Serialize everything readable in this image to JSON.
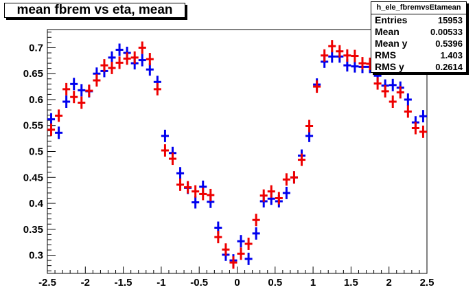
{
  "title": "mean fbrem vs eta, mean",
  "stats": {
    "name": "h_ele_fbremvsEtamean",
    "rows": [
      {
        "label": "Entries",
        "value": "15953"
      },
      {
        "label": "Mean",
        "value": "0.00533"
      },
      {
        "label": "Mean y",
        "value": "0.5396"
      },
      {
        "label": "RMS",
        "value": "1.403"
      },
      {
        "label": "RMS y",
        "value": "0.2614"
      }
    ]
  },
  "chart_data": {
    "type": "scatter",
    "title": "mean fbrem vs eta, mean",
    "xlabel": "",
    "ylabel": "",
    "xlim": [
      -2.5,
      2.5
    ],
    "ylim": [
      0.265,
      0.735
    ],
    "x_ticks": [
      "-2.5",
      "-2",
      "-1.5",
      "-1",
      "-0.5",
      "0",
      "0.5",
      "1",
      "1.5",
      "2",
      "2.5"
    ],
    "y_ticks": [
      "0.3",
      "0.35",
      "0.4",
      "0.45",
      "0.5",
      "0.55",
      "0.6",
      "0.65",
      "0.7"
    ],
    "grid": false,
    "series": [
      {
        "color": "#0000ee",
        "points": [
          [
            -2.45,
            0.562
          ],
          [
            -2.35,
            0.536
          ],
          [
            -2.25,
            0.596
          ],
          [
            -2.15,
            0.63
          ],
          [
            -2.05,
            0.618
          ],
          [
            -1.95,
            0.616
          ],
          [
            -1.85,
            0.65
          ],
          [
            -1.75,
            0.655
          ],
          [
            -1.65,
            0.681
          ],
          [
            -1.55,
            0.696
          ],
          [
            -1.45,
            0.69
          ],
          [
            -1.35,
            0.67
          ],
          [
            -1.25,
            0.676
          ],
          [
            -1.15,
            0.658
          ],
          [
            -1.05,
            0.634
          ],
          [
            -0.95,
            0.53
          ],
          [
            -0.85,
            0.497
          ],
          [
            -0.75,
            0.458
          ],
          [
            -0.65,
            0.43
          ],
          [
            -0.55,
            0.402
          ],
          [
            -0.45,
            0.432
          ],
          [
            -0.35,
            0.403
          ],
          [
            -0.25,
            0.353
          ],
          [
            -0.15,
            0.301
          ],
          [
            -0.05,
            0.29
          ],
          [
            0.05,
            0.327
          ],
          [
            0.15,
            0.293
          ],
          [
            0.25,
            0.342
          ],
          [
            0.35,
            0.404
          ],
          [
            0.45,
            0.409
          ],
          [
            0.55,
            0.404
          ],
          [
            0.65,
            0.42
          ],
          [
            0.75,
            0.45
          ],
          [
            0.85,
            0.492
          ],
          [
            0.95,
            0.53
          ],
          [
            1.05,
            0.629
          ],
          [
            1.15,
            0.673
          ],
          [
            1.25,
            0.683
          ],
          [
            1.35,
            0.683
          ],
          [
            1.45,
            0.666
          ],
          [
            1.55,
            0.664
          ],
          [
            1.65,
            0.663
          ],
          [
            1.75,
            0.663
          ],
          [
            1.85,
            0.646
          ],
          [
            1.95,
            0.627
          ],
          [
            2.05,
            0.628
          ],
          [
            2.15,
            0.623
          ],
          [
            2.25,
            0.6
          ],
          [
            2.35,
            0.556
          ],
          [
            2.45,
            0.568
          ]
        ]
      },
      {
        "color": "#ee0000",
        "points": [
          [
            -2.45,
            0.542
          ],
          [
            -2.35,
            0.569
          ],
          [
            -2.25,
            0.62
          ],
          [
            -2.15,
            0.605
          ],
          [
            -2.05,
            0.594
          ],
          [
            -1.95,
            0.617
          ],
          [
            -1.85,
            0.637
          ],
          [
            -1.75,
            0.666
          ],
          [
            -1.65,
            0.661
          ],
          [
            -1.55,
            0.671
          ],
          [
            -1.45,
            0.679
          ],
          [
            -1.35,
            0.681
          ],
          [
            -1.25,
            0.7
          ],
          [
            -1.15,
            0.678
          ],
          [
            -1.05,
            0.62
          ],
          [
            -0.95,
            0.502
          ],
          [
            -0.85,
            0.486
          ],
          [
            -0.75,
            0.436
          ],
          [
            -0.65,
            0.431
          ],
          [
            -0.55,
            0.423
          ],
          [
            -0.45,
            0.418
          ],
          [
            -0.35,
            0.416
          ],
          [
            -0.25,
            0.335
          ],
          [
            -0.15,
            0.311
          ],
          [
            -0.05,
            0.286
          ],
          [
            0.05,
            0.303
          ],
          [
            0.15,
            0.322
          ],
          [
            0.25,
            0.368
          ],
          [
            0.35,
            0.415
          ],
          [
            0.45,
            0.423
          ],
          [
            0.55,
            0.41
          ],
          [
            0.65,
            0.446
          ],
          [
            0.75,
            0.45
          ],
          [
            0.85,
            0.484
          ],
          [
            0.95,
            0.549
          ],
          [
            1.05,
            0.625
          ],
          [
            1.15,
            0.685
          ],
          [
            1.25,
            0.703
          ],
          [
            1.35,
            0.693
          ],
          [
            1.45,
            0.685
          ],
          [
            1.55,
            0.684
          ],
          [
            1.65,
            0.67
          ],
          [
            1.75,
            0.669
          ],
          [
            1.85,
            0.631
          ],
          [
            1.95,
            0.616
          ],
          [
            2.05,
            0.596
          ],
          [
            2.15,
            0.614
          ],
          [
            2.25,
            0.577
          ],
          [
            2.35,
            0.545
          ],
          [
            2.45,
            0.538
          ]
        ]
      }
    ]
  }
}
